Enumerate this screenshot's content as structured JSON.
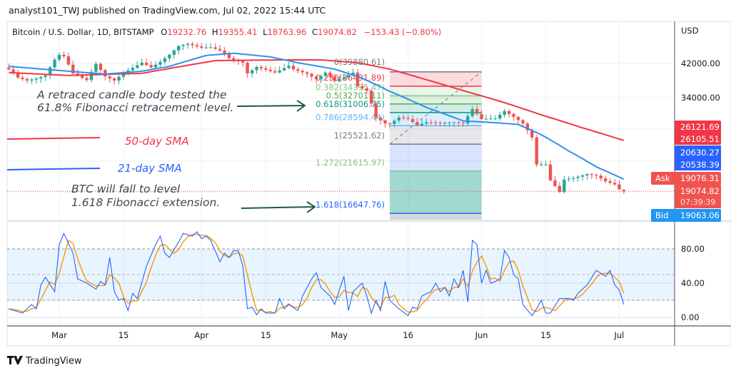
{
  "header": {
    "published": "analyst101_TWJ published on TradingView.com, Jul 02, 2022 15:44 UTC"
  },
  "legend": {
    "symbol": "Bitcoin / U.S. Dollar, 1D, BITSTAMP",
    "o_label": "O",
    "o": "19232.76",
    "h_label": "H",
    "h": "19355.41",
    "l_label": "L",
    "l": "18763.96",
    "c_label": "C",
    "c": "19074.82",
    "change": "−153.43 (−0.80%)"
  },
  "annotations": {
    "retrace_line1": "A retraced candle body tested the",
    "retrace_line2": "61.8% Fibonacci retracement level.",
    "sma50": "50-day SMA",
    "sma21": "21-day SMA",
    "fall_line1": "BTC will fall to level",
    "fall_line2": "1.618 Fibonacci extension."
  },
  "price_axis": {
    "currency": "USD",
    "ticks": [
      "42000.00",
      "34000.00"
    ],
    "tick_values": [
      42000,
      34000
    ],
    "labels": {
      "sma50_a": "26121.69",
      "sma50_b": "26105.51",
      "sma21_a": "20630.27",
      "sma21_b": "20538.39",
      "ask_label": "Ask",
      "ask": "19076.31",
      "last": "19074.82",
      "countdown": "07:39:39",
      "bid_label": "Bid",
      "bid": "19063.06"
    }
  },
  "osc_axis": {
    "ticks": [
      "80.00",
      "40.00",
      "0.00"
    ],
    "tick_values": [
      80,
      40,
      0
    ]
  },
  "time_axis": {
    "labels": [
      "Mar",
      "15",
      "Apr",
      "15",
      "May",
      "16",
      "Jun",
      "15",
      "Jul"
    ],
    "dates": [
      "2022-03-01",
      "2022-03-15",
      "2022-04-01",
      "2022-04-15",
      "2022-05-01",
      "2022-05-16",
      "2022-06-01",
      "2022-06-15",
      "2022-07-01"
    ]
  },
  "footer": {
    "brand": "TradingView"
  },
  "colors": {
    "up": "#26a69a",
    "down": "#ef5350",
    "sma50": "#f23645",
    "sma21": "#2f8ff0",
    "stoch_k": "#2962ff",
    "stoch_d": "#ff9800",
    "text": "#131722"
  },
  "chart_data": [
    {
      "type": "candlestick",
      "title": "Bitcoin / U.S. Dollar, 1D, BITSTAMP",
      "scale": "log",
      "close_keypoints": [
        [
          "2022-02-18",
          40500
        ],
        [
          "2022-02-20",
          38500
        ],
        [
          "2022-02-22",
          37800
        ],
        [
          "2022-02-24",
          38300
        ],
        [
          "2022-02-26",
          39000
        ],
        [
          "2022-02-28",
          43000
        ],
        [
          "2022-03-01",
          44300
        ],
        [
          "2022-03-02",
          43900
        ],
        [
          "2022-03-04",
          39500
        ],
        [
          "2022-03-06",
          38400
        ],
        [
          "2022-03-07",
          37900
        ],
        [
          "2022-03-09",
          41900
        ],
        [
          "2022-03-11",
          38800
        ],
        [
          "2022-03-13",
          37800
        ],
        [
          "2022-03-15",
          39600
        ],
        [
          "2022-03-17",
          40900
        ],
        [
          "2022-03-19",
          42200
        ],
        [
          "2022-03-21",
          41000
        ],
        [
          "2022-03-23",
          42400
        ],
        [
          "2022-03-25",
          44300
        ],
        [
          "2022-03-27",
          46800
        ],
        [
          "2022-03-29",
          47400
        ],
        [
          "2022-04-01",
          46300
        ],
        [
          "2022-04-03",
          46400
        ],
        [
          "2022-04-05",
          45500
        ],
        [
          "2022-04-07",
          43400
        ],
        [
          "2022-04-10",
          42200
        ],
        [
          "2022-04-11",
          39500
        ],
        [
          "2022-04-13",
          41100
        ],
        [
          "2022-04-17",
          39700
        ],
        [
          "2022-04-20",
          41400
        ],
        [
          "2022-04-21",
          40500
        ],
        [
          "2022-04-24",
          39400
        ],
        [
          "2022-04-26",
          38100
        ],
        [
          "2022-04-28",
          39700
        ],
        [
          "2022-04-30",
          37700
        ],
        [
          "2022-05-02",
          38500
        ],
        [
          "2022-05-04",
          39700
        ],
        [
          "2022-05-05",
          36500
        ],
        [
          "2022-05-07",
          35500
        ],
        [
          "2022-05-09",
          30100
        ],
        [
          "2022-05-11",
          29000
        ],
        [
          "2022-05-12",
          28900
        ],
        [
          "2022-05-14",
          30100
        ],
        [
          "2022-05-16",
          29800
        ],
        [
          "2022-05-18",
          28700
        ],
        [
          "2022-05-20",
          29200
        ],
        [
          "2022-05-23",
          29100
        ],
        [
          "2022-05-26",
          29200
        ],
        [
          "2022-05-28",
          29000
        ],
        [
          "2022-05-30",
          31700
        ],
        [
          "2022-06-01",
          29800
        ],
        [
          "2022-06-04",
          29900
        ],
        [
          "2022-06-06",
          31300
        ],
        [
          "2022-06-08",
          30200
        ],
        [
          "2022-06-10",
          29000
        ],
        [
          "2022-06-12",
          26600
        ],
        [
          "2022-06-13",
          22500
        ],
        [
          "2022-06-15",
          22500
        ],
        [
          "2022-06-16",
          20400
        ],
        [
          "2022-06-18",
          19000
        ],
        [
          "2022-06-19",
          20500
        ],
        [
          "2022-06-21",
          20700
        ],
        [
          "2022-06-24",
          21200
        ],
        [
          "2022-06-26",
          21000
        ],
        [
          "2022-06-28",
          20300
        ],
        [
          "2022-06-30",
          19900
        ],
        [
          "2022-07-01",
          19300
        ],
        [
          "2022-07-02",
          19074.82
        ]
      ],
      "last": {
        "open": 19232.76,
        "high": 19355.41,
        "low": 18763.96,
        "close": 19074.82
      }
    },
    {
      "type": "line",
      "name": "50-day SMA",
      "points": [
        [
          "2022-02-18",
          39700
        ],
        [
          "2022-03-03",
          39010
        ],
        [
          "2022-03-19",
          39520
        ],
        [
          "2022-04-04",
          42750
        ],
        [
          "2022-04-19",
          42940
        ],
        [
          "2022-04-27",
          42940
        ],
        [
          "2022-05-05",
          42190
        ],
        [
          "2022-05-12",
          40560
        ],
        [
          "2022-05-20",
          37990
        ],
        [
          "2022-05-28",
          35510
        ],
        [
          "2022-06-05",
          33260
        ],
        [
          "2022-06-14",
          30580
        ],
        [
          "2022-06-23",
          28220
        ],
        [
          "2022-07-02",
          26105.51
        ]
      ]
    },
    {
      "type": "line",
      "name": "21-day SMA",
      "points": [
        [
          "2022-02-18",
          41260
        ],
        [
          "2022-03-03",
          40040
        ],
        [
          "2022-03-11",
          39330
        ],
        [
          "2022-03-19",
          40040
        ],
        [
          "2022-03-25",
          41260
        ],
        [
          "2022-04-02",
          44130
        ],
        [
          "2022-04-08",
          44750
        ],
        [
          "2022-04-16",
          43740
        ],
        [
          "2022-04-22",
          42190
        ],
        [
          "2022-04-30",
          40560
        ],
        [
          "2022-05-06",
          38340
        ],
        [
          "2022-05-12",
          35360
        ],
        [
          "2022-05-20",
          32000
        ],
        [
          "2022-05-28",
          29460
        ],
        [
          "2022-06-05",
          29080
        ],
        [
          "2022-06-09",
          28820
        ],
        [
          "2022-06-14",
          27050
        ],
        [
          "2022-06-20",
          24460
        ],
        [
          "2022-06-26",
          22180
        ],
        [
          "2022-07-02",
          20538.39
        ]
      ]
    },
    {
      "type": "fibonacci",
      "start_date": "2022-05-12",
      "end_date": "2022-06-01",
      "levels": [
        {
          "ratio": "0",
          "price": "39880.61",
          "value": 39880.61,
          "color": "#787b86",
          "fill": "rgba(242,54,69,0.18)"
        },
        {
          "ratio": "0.236",
          "price": "36491.89",
          "value": 36491.89,
          "color": "#f23645",
          "fill": "rgba(129,199,132,0.18)"
        },
        {
          "ratio": "0.382",
          "price": "34395.47",
          "value": 34395.47,
          "color": "#81c784",
          "fill": "rgba(76,175,80,0.18)"
        },
        {
          "ratio": "0.5",
          "price": "32701.11",
          "value": 32701.11,
          "color": "#4caf50",
          "fill": "rgba(8,153,129,0.18)"
        },
        {
          "ratio": "0.618",
          "price": "31006.75",
          "value": 31006.75,
          "color": "#089981",
          "fill": "rgba(100,181,246,0.22)"
        },
        {
          "ratio": "0.786",
          "price": "28594.44",
          "value": 28594.44,
          "color": "#64b5f6",
          "fill": "rgba(120,123,134,0.18)"
        },
        {
          "ratio": "1",
          "price": "25521.62",
          "value": 25521.62,
          "color": "#787b86",
          "fill": "rgba(41,98,255,0.18)"
        },
        {
          "ratio": "1.272",
          "price": "21615.97",
          "value": 21615.97,
          "color": "#81c784",
          "fill": "rgba(8,153,129,0.38)"
        },
        {
          "ratio": "1.618",
          "price": "16647.76",
          "value": 16647.76,
          "color": "#2962ff",
          "fill": "rgba(120,123,134,0.3)"
        }
      ]
    },
    {
      "type": "line",
      "name": "Stochastic",
      "ylim": [
        0,
        100
      ],
      "bands": [
        20,
        50,
        80
      ],
      "k_points": [
        [
          "2022-02-18",
          10
        ],
        [
          "2022-02-21",
          5
        ],
        [
          "2022-02-23",
          15
        ],
        [
          "2022-02-24",
          10
        ],
        [
          "2022-02-25",
          38
        ],
        [
          "2022-02-26",
          47
        ],
        [
          "2022-02-28",
          30
        ],
        [
          "2022-03-01",
          85
        ],
        [
          "2022-03-02",
          98
        ],
        [
          "2022-03-04",
          75
        ],
        [
          "2022-03-05",
          45
        ],
        [
          "2022-03-07",
          40
        ],
        [
          "2022-03-09",
          33
        ],
        [
          "2022-03-10",
          42
        ],
        [
          "2022-03-11",
          38
        ],
        [
          "2022-03-12",
          70
        ],
        [
          "2022-03-13",
          30
        ],
        [
          "2022-03-14",
          20
        ],
        [
          "2022-03-15",
          22
        ],
        [
          "2022-03-16",
          8
        ],
        [
          "2022-03-17",
          28
        ],
        [
          "2022-03-18",
          22
        ],
        [
          "2022-03-20",
          60
        ],
        [
          "2022-03-22",
          85
        ],
        [
          "2022-03-23",
          95
        ],
        [
          "2022-03-24",
          75
        ],
        [
          "2022-03-25",
          70
        ],
        [
          "2022-03-27",
          88
        ],
        [
          "2022-03-28",
          98
        ],
        [
          "2022-03-30",
          95
        ],
        [
          "2022-03-31",
          100
        ],
        [
          "2022-04-01",
          92
        ],
        [
          "2022-04-02",
          95
        ],
        [
          "2022-04-03",
          90
        ],
        [
          "2022-04-05",
          65
        ],
        [
          "2022-04-06",
          75
        ],
        [
          "2022-04-07",
          70
        ],
        [
          "2022-04-08",
          78
        ],
        [
          "2022-04-09",
          78
        ],
        [
          "2022-04-10",
          60
        ],
        [
          "2022-04-11",
          10
        ],
        [
          "2022-04-12",
          12
        ],
        [
          "2022-04-13",
          3
        ],
        [
          "2022-04-14",
          10
        ],
        [
          "2022-04-15",
          5
        ],
        [
          "2022-04-17",
          5
        ],
        [
          "2022-04-18",
          22
        ],
        [
          "2022-04-19",
          10
        ],
        [
          "2022-04-20",
          15
        ],
        [
          "2022-04-22",
          8
        ],
        [
          "2022-04-23",
          25
        ],
        [
          "2022-04-25",
          45
        ],
        [
          "2022-04-26",
          52
        ],
        [
          "2022-04-27",
          35
        ],
        [
          "2022-04-29",
          25
        ],
        [
          "2022-04-30",
          15
        ],
        [
          "2022-05-02",
          48
        ],
        [
          "2022-05-03",
          8
        ],
        [
          "2022-05-04",
          30
        ],
        [
          "2022-05-06",
          40
        ],
        [
          "2022-05-07",
          25
        ],
        [
          "2022-05-08",
          5
        ],
        [
          "2022-05-09",
          20
        ],
        [
          "2022-05-10",
          8
        ],
        [
          "2022-05-11",
          42
        ],
        [
          "2022-05-12",
          20
        ],
        [
          "2022-05-14",
          10
        ],
        [
          "2022-05-16",
          2
        ],
        [
          "2022-05-17",
          12
        ],
        [
          "2022-05-18",
          10
        ],
        [
          "2022-05-19",
          25
        ],
        [
          "2022-05-21",
          30
        ],
        [
          "2022-05-22",
          40
        ],
        [
          "2022-05-23",
          30
        ],
        [
          "2022-05-24",
          35
        ],
        [
          "2022-05-25",
          25
        ],
        [
          "2022-05-26",
          45
        ],
        [
          "2022-05-27",
          35
        ],
        [
          "2022-05-28",
          55
        ],
        [
          "2022-05-29",
          18
        ],
        [
          "2022-05-30",
          90
        ],
        [
          "2022-05-31",
          85
        ],
        [
          "2022-06-01",
          40
        ],
        [
          "2022-06-02",
          55
        ],
        [
          "2022-06-03",
          40
        ],
        [
          "2022-06-04",
          42
        ],
        [
          "2022-06-05",
          45
        ],
        [
          "2022-06-06",
          78
        ],
        [
          "2022-06-07",
          70
        ],
        [
          "2022-06-08",
          50
        ],
        [
          "2022-06-09",
          45
        ],
        [
          "2022-06-10",
          15
        ],
        [
          "2022-06-12",
          2
        ],
        [
          "2022-06-13",
          10
        ],
        [
          "2022-06-14",
          20
        ],
        [
          "2022-06-15",
          5
        ],
        [
          "2022-06-16",
          5
        ],
        [
          "2022-06-18",
          22
        ],
        [
          "2022-06-20",
          22
        ],
        [
          "2022-06-21",
          20
        ],
        [
          "2022-06-22",
          28
        ],
        [
          "2022-06-24",
          38
        ],
        [
          "2022-06-26",
          55
        ],
        [
          "2022-06-28",
          48
        ],
        [
          "2022-06-29",
          55
        ],
        [
          "2022-06-30",
          38
        ],
        [
          "2022-07-01",
          32
        ],
        [
          "2022-07-02",
          15
        ]
      ]
    }
  ]
}
